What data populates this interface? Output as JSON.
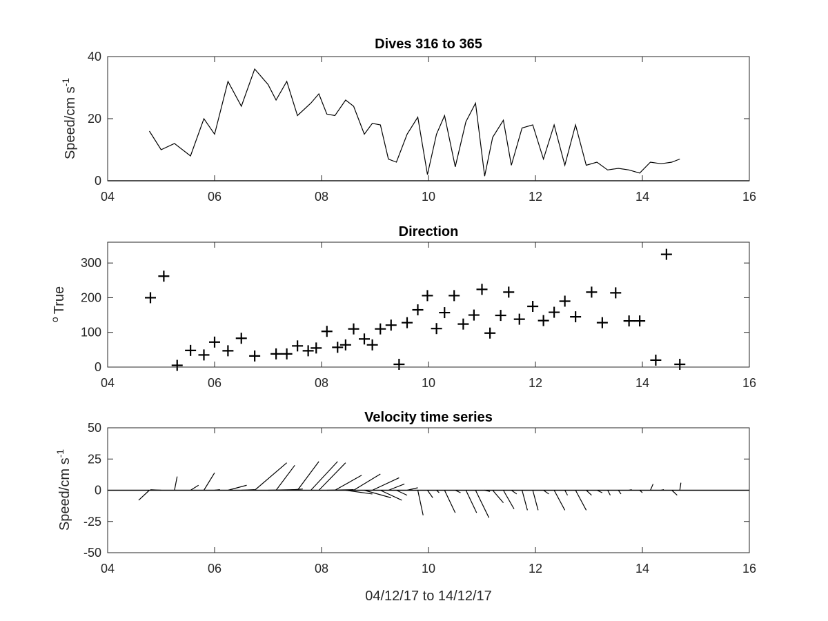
{
  "figure": {
    "xlabel": "04/12/17 to 14/12/17"
  },
  "chart_data": [
    {
      "type": "line",
      "title": "Dives 316 to 365",
      "ylabel_main": "Speed/cm s",
      "ylabel_sup": "-1",
      "xlim": [
        4,
        16
      ],
      "ylim": [
        0,
        40
      ],
      "xticks": [
        4,
        6,
        8,
        10,
        12,
        14,
        16
      ],
      "xticklabels": [
        "04",
        "06",
        "08",
        "10",
        "12",
        "14",
        "16"
      ],
      "yticks": [
        0,
        20,
        40
      ],
      "yticklabels": [
        "0",
        "20",
        "40"
      ],
      "grid": false,
      "x": [
        4.78,
        5.0,
        5.25,
        5.55,
        5.8,
        6.0,
        6.25,
        6.5,
        6.75,
        7.0,
        7.15,
        7.35,
        7.55,
        7.8,
        7.95,
        8.1,
        8.25,
        8.45,
        8.6,
        8.8,
        8.95,
        9.1,
        9.25,
        9.4,
        9.6,
        9.8,
        9.98,
        10.15,
        10.3,
        10.5,
        10.7,
        10.88,
        11.05,
        11.2,
        11.4,
        11.55,
        11.75,
        11.95,
        12.15,
        12.35,
        12.55,
        12.75,
        12.95,
        13.15,
        13.35,
        13.55,
        13.75,
        13.95,
        14.15,
        14.35,
        14.55,
        14.7
      ],
      "y": [
        16,
        10,
        12,
        8,
        20,
        15,
        32,
        24,
        36,
        31,
        26,
        32,
        21,
        25,
        28,
        21.5,
        21,
        26,
        24,
        15,
        18.5,
        18,
        7,
        6,
        15,
        20.5,
        2,
        15,
        21,
        4.5,
        19,
        25,
        1.5,
        14,
        19.5,
        5,
        17,
        18,
        7,
        18,
        5,
        18,
        5,
        6,
        3.5,
        4,
        3.5,
        2.5,
        6,
        5.5,
        6,
        7
      ]
    },
    {
      "type": "scatter",
      "title": "Direction",
      "ylabel_main": "True",
      "ylabel_sup": "o",
      "marker": "+",
      "xlim": [
        4,
        16
      ],
      "ylim": [
        0,
        360
      ],
      "xticks": [
        4,
        6,
        8,
        10,
        12,
        14,
        16
      ],
      "xticklabels": [
        "04",
        "06",
        "08",
        "10",
        "12",
        "14",
        "16"
      ],
      "yticks": [
        0,
        100,
        200,
        300
      ],
      "yticklabels": [
        "0",
        "100",
        "200",
        "300"
      ],
      "grid": false,
      "x": [
        4.8,
        5.05,
        5.3,
        5.55,
        5.8,
        6.0,
        6.25,
        6.5,
        6.75,
        7.15,
        7.35,
        7.55,
        7.75,
        7.9,
        8.1,
        8.3,
        8.45,
        8.6,
        8.8,
        8.95,
        9.1,
        9.3,
        9.45,
        9.6,
        9.8,
        9.98,
        10.15,
        10.3,
        10.48,
        10.65,
        10.85,
        11.0,
        11.15,
        11.35,
        11.5,
        11.7,
        11.95,
        12.15,
        12.35,
        12.55,
        12.75,
        13.05,
        13.25,
        13.5,
        13.75,
        13.95,
        14.25,
        14.45,
        14.7
      ],
      "y": [
        200,
        262,
        5,
        48,
        35,
        72,
        47,
        83,
        32,
        38,
        38,
        61,
        47,
        55,
        103,
        57,
        64,
        110,
        81,
        64,
        110,
        121,
        8,
        128,
        165,
        206,
        111,
        157,
        206,
        124,
        150,
        224,
        98,
        149,
        216,
        138,
        175,
        134,
        158,
        190,
        145,
        216,
        128,
        214,
        133,
        133,
        20,
        325,
        8
      ]
    },
    {
      "type": "vector",
      "title": "Velocity time series",
      "ylabel_main": "Speed/cm s",
      "ylabel_sup": "-1",
      "xlim": [
        4,
        16
      ],
      "ylim": [
        -50,
        50
      ],
      "xticks": [
        4,
        6,
        8,
        10,
        12,
        14,
        16
      ],
      "xticklabels": [
        "04",
        "06",
        "08",
        "10",
        "12",
        "14",
        "16"
      ],
      "yticks": [
        -50,
        -25,
        0,
        25,
        50
      ],
      "yticklabels": [
        "-50",
        "-25",
        "0",
        "25",
        "50"
      ],
      "grid": false,
      "note_vectors": "each stick starts at (t, 0) and ends at (t + dt, v)",
      "vectors": [
        {
          "t": 4.78,
          "dt": -0.2,
          "v": -8
        },
        {
          "t": 5.0,
          "dt": -0.2,
          "v": 0.4
        },
        {
          "t": 5.25,
          "dt": 0.05,
          "v": 11
        },
        {
          "t": 5.55,
          "dt": 0.15,
          "v": 4
        },
        {
          "t": 5.8,
          "dt": 0.2,
          "v": 14
        },
        {
          "t": 6.0,
          "dt": 0.1,
          "v": 0.5
        },
        {
          "t": 6.25,
          "dt": 0.35,
          "v": 4
        },
        {
          "t": 6.5,
          "dt": 0.25,
          "v": 0.5
        },
        {
          "t": 6.75,
          "dt": 0.6,
          "v": 22
        },
        {
          "t": 7.0,
          "dt": 0.5,
          "v": 0.5
        },
        {
          "t": 7.15,
          "dt": 0.35,
          "v": 20
        },
        {
          "t": 7.35,
          "dt": 0.3,
          "v": 1
        },
        {
          "t": 7.55,
          "dt": 0.4,
          "v": 23
        },
        {
          "t": 7.8,
          "dt": 0.5,
          "v": 23
        },
        {
          "t": 7.95,
          "dt": 0.5,
          "v": 22
        },
        {
          "t": 8.1,
          "dt": 0.5,
          "v": 0.5
        },
        {
          "t": 8.25,
          "dt": 0.5,
          "v": 12
        },
        {
          "t": 8.45,
          "dt": 0.5,
          "v": -3
        },
        {
          "t": 8.6,
          "dt": 0.5,
          "v": 13
        },
        {
          "t": 8.8,
          "dt": 0.5,
          "v": -6
        },
        {
          "t": 8.95,
          "dt": 0.5,
          "v": 10
        },
        {
          "t": 9.1,
          "dt": 0.4,
          "v": -8
        },
        {
          "t": 9.25,
          "dt": 0.3,
          "v": 5
        },
        {
          "t": 9.4,
          "dt": 0.2,
          "v": -4
        },
        {
          "t": 9.6,
          "dt": 0.2,
          "v": 2
        },
        {
          "t": 9.8,
          "dt": 0.1,
          "v": -20
        },
        {
          "t": 9.98,
          "dt": 0.1,
          "v": -6
        },
        {
          "t": 10.15,
          "dt": 0.05,
          "v": -2
        },
        {
          "t": 10.3,
          "dt": 0.2,
          "v": -18
        },
        {
          "t": 10.5,
          "dt": 0.1,
          "v": -2
        },
        {
          "t": 10.7,
          "dt": 0.2,
          "v": -18
        },
        {
          "t": 10.88,
          "dt": 0.25,
          "v": -22
        },
        {
          "t": 11.05,
          "dt": 0.1,
          "v": -1
        },
        {
          "t": 11.2,
          "dt": 0.2,
          "v": -10
        },
        {
          "t": 11.4,
          "dt": 0.2,
          "v": -15
        },
        {
          "t": 11.55,
          "dt": 0.1,
          "v": -3
        },
        {
          "t": 11.75,
          "dt": 0.1,
          "v": -16
        },
        {
          "t": 11.95,
          "dt": 0.1,
          "v": -16
        },
        {
          "t": 12.15,
          "dt": 0.1,
          "v": -3
        },
        {
          "t": 12.35,
          "dt": 0.2,
          "v": -16
        },
        {
          "t": 12.55,
          "dt": 0.05,
          "v": -4
        },
        {
          "t": 12.75,
          "dt": 0.2,
          "v": -16
        },
        {
          "t": 12.95,
          "dt": 0.1,
          "v": -4
        },
        {
          "t": 13.15,
          "dt": 0.1,
          "v": -2
        },
        {
          "t": 13.35,
          "dt": 0.05,
          "v": -4
        },
        {
          "t": 13.55,
          "dt": 0.05,
          "v": -3
        },
        {
          "t": 13.75,
          "dt": 0.05,
          "v": 0.5
        },
        {
          "t": 13.95,
          "dt": 0.05,
          "v": -2
        },
        {
          "t": 14.15,
          "dt": 0.05,
          "v": 5
        },
        {
          "t": 14.35,
          "dt": 0.05,
          "v": 0.5
        },
        {
          "t": 14.55,
          "dt": 0.1,
          "v": -4
        },
        {
          "t": 14.7,
          "dt": 0.02,
          "v": 6
        }
      ]
    }
  ]
}
